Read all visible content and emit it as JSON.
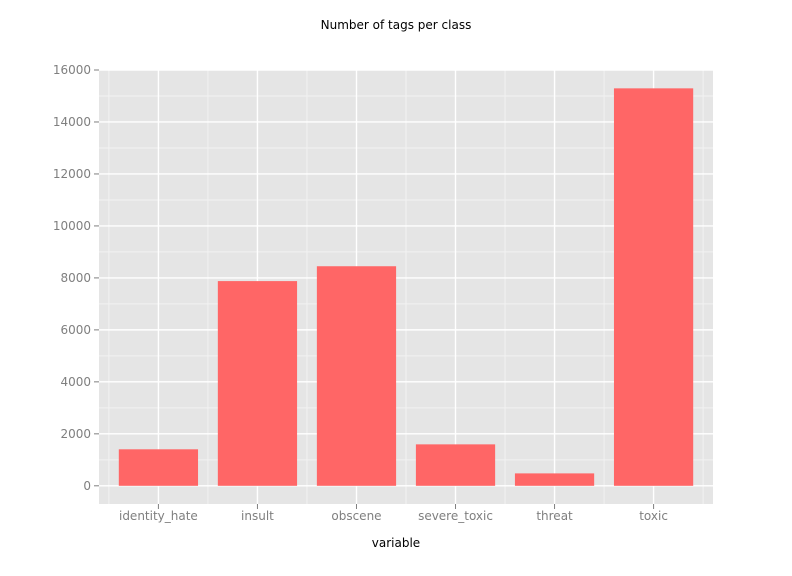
{
  "chart_data": {
    "type": "bar",
    "title": "Number of tags per class",
    "xlabel": "variable",
    "ylabel": "",
    "categories": [
      "identity_hate",
      "insult",
      "obscene",
      "severe_toxic",
      "threat",
      "toxic"
    ],
    "values": [
      1405,
      7877,
      8449,
      1595,
      478,
      15294
    ],
    "ylim": [
      -700,
      16000
    ],
    "yticks": [
      0,
      2000,
      4000,
      6000,
      8000,
      10000,
      12000,
      14000,
      16000
    ],
    "grid": true,
    "legend": "none",
    "colors": {
      "bar": "#ff6666",
      "panel": "#e5e5e5",
      "grid_major": "#ffffff",
      "grid_minor": "#f2f2f2",
      "tick_text": "#7f7f7f"
    }
  }
}
